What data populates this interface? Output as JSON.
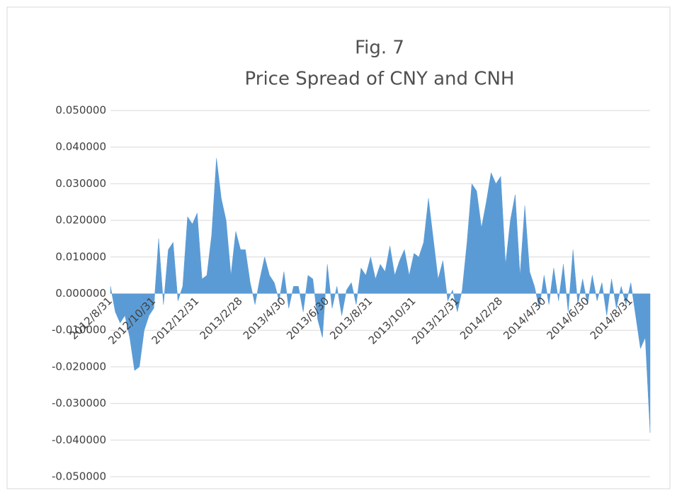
{
  "chart_data": {
    "type": "area",
    "title": "Fig. 7",
    "subtitle": "Price Spread of CNY and CNH",
    "categories": [
      "2012/8/31",
      null,
      null,
      null,
      null,
      null,
      null,
      null,
      null,
      "2012/10/31",
      null,
      null,
      null,
      null,
      null,
      null,
      null,
      null,
      "2012/12/31",
      null,
      null,
      null,
      null,
      null,
      null,
      null,
      null,
      "2013/2/28",
      null,
      null,
      null,
      null,
      null,
      null,
      null,
      null,
      "2013/4/30",
      null,
      null,
      null,
      null,
      null,
      null,
      null,
      null,
      "2013/6/30",
      null,
      null,
      null,
      null,
      null,
      null,
      null,
      null,
      "2013/8/31",
      null,
      null,
      null,
      null,
      null,
      null,
      null,
      null,
      "2013/10/31",
      null,
      null,
      null,
      null,
      null,
      null,
      null,
      null,
      "2013/12/31",
      null,
      null,
      null,
      null,
      null,
      null,
      null,
      null,
      "2014/2/28",
      null,
      null,
      null,
      null,
      null,
      null,
      null,
      null,
      "2014/4/30",
      null,
      null,
      null,
      null,
      null,
      null,
      null,
      null,
      "2014/6/30",
      null,
      null,
      null,
      null,
      null,
      null,
      null,
      null,
      "2014/8/31",
      null,
      null,
      null,
      null
    ],
    "values": [
      0.002,
      -0.005,
      -0.008,
      -0.006,
      -0.012,
      -0.021,
      -0.02,
      -0.01,
      -0.006,
      -0.004,
      0.015,
      -0.003,
      0.012,
      0.014,
      -0.002,
      0.002,
      0.021,
      0.019,
      0.022,
      0.004,
      0.005,
      0.016,
      0.037,
      0.026,
      0.02,
      0.005,
      0.017,
      0.012,
      0.012,
      0.003,
      -0.003,
      0.004,
      0.01,
      0.005,
      0.003,
      -0.002,
      0.006,
      -0.004,
      0.002,
      0.002,
      -0.005,
      0.005,
      0.004,
      -0.007,
      -0.012,
      0.008,
      -0.004,
      0.002,
      -0.006,
      0.001,
      0.003,
      -0.003,
      0.007,
      0.005,
      0.01,
      0.004,
      0.008,
      0.006,
      0.013,
      0.005,
      0.009,
      0.012,
      0.005,
      0.011,
      0.01,
      0.014,
      0.026,
      0.015,
      0.004,
      0.009,
      -0.002,
      0.001,
      -0.005,
      0.001,
      0.014,
      0.03,
      0.028,
      0.018,
      0.025,
      0.033,
      0.03,
      0.032,
      0.008,
      0.02,
      0.027,
      0.005,
      0.024,
      0.006,
      0.002,
      -0.004,
      0.005,
      -0.003,
      0.007,
      -0.002,
      0.008,
      -0.005,
      0.012,
      -0.003,
      0.004,
      -0.003,
      0.005,
      -0.002,
      0.003,
      -0.006,
      0.004,
      -0.004,
      0.002,
      -0.003,
      0.003,
      -0.006,
      -0.015,
      -0.012,
      -0.038
    ],
    "color": "#5b9bd5",
    "ylim": [
      -0.05,
      0.05
    ],
    "yticks": [
      {
        "value": -0.05,
        "label": "-0.050000"
      },
      {
        "value": -0.04,
        "label": "-0.040000"
      },
      {
        "value": -0.03,
        "label": "-0.030000"
      },
      {
        "value": -0.02,
        "label": "-0.020000"
      },
      {
        "value": -0.01,
        "label": "-0.010000"
      },
      {
        "value": 0,
        "label": "0.000000"
      },
      {
        "value": 0.01,
        "label": "0.010000"
      },
      {
        "value": 0.02,
        "label": "0.020000"
      },
      {
        "value": 0.03,
        "label": "0.030000"
      },
      {
        "value": 0.04,
        "label": "0.040000"
      },
      {
        "value": 0.05,
        "label": "0.050000"
      }
    ],
    "grid": true
  }
}
